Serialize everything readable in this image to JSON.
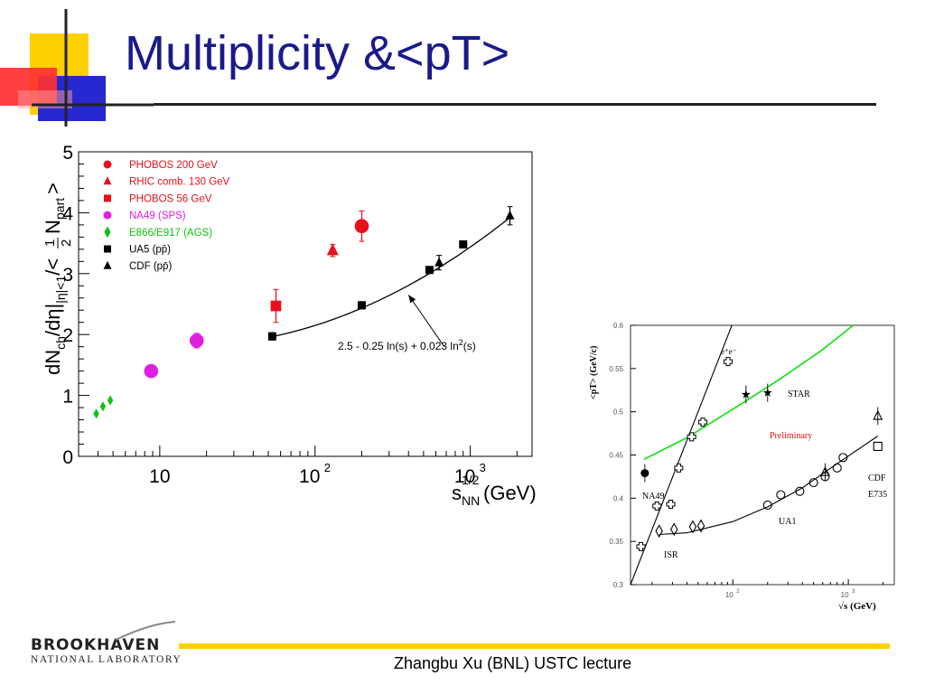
{
  "slide": {
    "title": "Multiplicity &<pT>",
    "footer": "Zhangbu Xu (BNL) USTC lecture",
    "logo_line1": "BROOKHAVEN",
    "logo_line2": "NATIONAL LABORATORY"
  },
  "colors": {
    "title": "#1a1a8c",
    "accent_yellow": "#ffd000",
    "accent_red": "#ff3030",
    "accent_blue": "#2828d0",
    "phobos_red": "#e8101a",
    "na49_magenta": "#e020e0",
    "ags_green": "#10c010",
    "star_curve": "#10e010"
  },
  "chart_data": [
    {
      "type": "scatter",
      "title": "",
      "xlabel": "sNN1/2 (GeV)",
      "xlabel_parts": {
        "s": "s",
        "sup": "1/2",
        "sub": "NN",
        "unit": "(GeV)"
      },
      "ylabel": "dNch/dη||η|<1/<½ Npart>",
      "x_scale": "log",
      "xlim": [
        3,
        2500
      ],
      "ylim": [
        0,
        5
      ],
      "x_ticks": [
        {
          "v": 10,
          "b": "10",
          "e": ""
        },
        {
          "v": 100,
          "b": "10",
          "e": "2"
        },
        {
          "v": 1000,
          "b": "10",
          "e": "3"
        }
      ],
      "y_ticks": [
        "0",
        "1",
        "2",
        "3",
        "4",
        "5"
      ],
      "legend_position": "top-left",
      "series": [
        {
          "name": "PHOBOS 200 GeV",
          "color": "#e8101a",
          "marker": "circle",
          "points": [
            {
              "x": 200,
              "y": 3.78,
              "err": 0.25
            }
          ]
        },
        {
          "name": "RHIC comb. 130 GeV",
          "color": "#e8101a",
          "marker": "triangle",
          "points": [
            {
              "x": 130,
              "y": 3.38,
              "err": 0.1
            }
          ]
        },
        {
          "name": "PHOBOS 56 GeV",
          "color": "#e8101a",
          "marker": "square",
          "points": [
            {
              "x": 56,
              "y": 2.47,
              "err": 0.27
            }
          ]
        },
        {
          "name": "NA49 (SPS)",
          "color": "#e020e0",
          "marker": "circle",
          "points": [
            {
              "x": 8.8,
              "y": 1.4,
              "err": 0.1
            },
            {
              "x": 17.3,
              "y": 1.9,
              "err": 0.12
            }
          ]
        },
        {
          "name": "E866/E917 (AGS)",
          "color": "#10c010",
          "marker": "diamond",
          "points": [
            {
              "x": 3.9,
              "y": 0.7
            },
            {
              "x": 4.3,
              "y": 0.82
            },
            {
              "x": 4.8,
              "y": 0.92
            }
          ]
        },
        {
          "name": "UA5 (pp̄)",
          "color": "#000000",
          "marker": "square",
          "points": [
            {
              "x": 53,
              "y": 1.97,
              "err": 0.06
            },
            {
              "x": 200,
              "y": 2.48,
              "err": 0.06
            },
            {
              "x": 546,
              "y": 3.06,
              "err": 0.05
            },
            {
              "x": 900,
              "y": 3.48,
              "err": 0.04
            }
          ]
        },
        {
          "name": "CDF (pp̄)",
          "color": "#000000",
          "marker": "triangle",
          "points": [
            {
              "x": 630,
              "y": 3.18,
              "err": 0.12
            },
            {
              "x": 1800,
              "y": 3.95,
              "err": 0.15
            }
          ]
        }
      ],
      "fit_curve": {
        "label": "2.5 - 0.25 ln(s) + 0.023 ln ²(s)",
        "label_main": "2.5 - 0.25 ln(s) + 0.023 ln",
        "label_sup": "2",
        "label_tail": "(s)",
        "a": 2.5,
        "b": -0.25,
        "c": 0.023,
        "x_range": [
          53,
          1800
        ]
      }
    },
    {
      "type": "scatter",
      "title": "",
      "xlabel": "√s (GeV)",
      "ylabel": "<pT> (GeV/c)",
      "x_scale": "log",
      "xlim": [
        13,
        2500
      ],
      "ylim": [
        0.3,
        0.6
      ],
      "x_ticks": [
        {
          "v": 100,
          "b": "10",
          "e": "2"
        },
        {
          "v": 1000,
          "b": "10",
          "e": "3"
        }
      ],
      "y_ticks": [
        "0.3",
        "0.35",
        "0.4",
        "0.45",
        "0.5",
        "0.55",
        "0.6"
      ],
      "annotations": [
        "e⁺e⁻",
        "STAR",
        "Preliminary",
        "NA49",
        "ISR",
        "UA1",
        "CDF",
        "E735"
      ],
      "series": [
        {
          "name": "e⁺e⁻",
          "marker": "cross",
          "points": [
            {
              "x": 16,
              "y": 0.344
            },
            {
              "x": 22,
              "y": 0.391
            },
            {
              "x": 29,
              "y": 0.393
            },
            {
              "x": 34,
              "y": 0.435
            },
            {
              "x": 44,
              "y": 0.471
            },
            {
              "x": 55,
              "y": 0.488
            },
            {
              "x": 91,
              "y": 0.558
            }
          ]
        },
        {
          "name": "STAR",
          "marker": "star",
          "points": [
            {
              "x": 130,
              "y": 0.52
            },
            {
              "x": 200,
              "y": 0.522
            }
          ]
        },
        {
          "name": "NA49",
          "marker": "dot",
          "points": [
            {
              "x": 17.3,
              "y": 0.429
            }
          ]
        },
        {
          "name": "ISR",
          "marker": "diamond",
          "points": [
            {
              "x": 23,
              "y": 0.362
            },
            {
              "x": 31,
              "y": 0.364
            },
            {
              "x": 45,
              "y": 0.367
            },
            {
              "x": 53,
              "y": 0.368
            }
          ]
        },
        {
          "name": "UA1",
          "marker": "circle",
          "points": [
            {
              "x": 200,
              "y": 0.392
            },
            {
              "x": 260,
              "y": 0.404
            },
            {
              "x": 380,
              "y": 0.408
            },
            {
              "x": 500,
              "y": 0.418
            },
            {
              "x": 630,
              "y": 0.425
            },
            {
              "x": 800,
              "y": 0.435
            },
            {
              "x": 900,
              "y": 0.447
            }
          ]
        },
        {
          "name": "CDF",
          "marker": "triangle",
          "points": [
            {
              "x": 630,
              "y": 0.43
            },
            {
              "x": 1800,
              "y": 0.495
            }
          ]
        },
        {
          "name": "E735",
          "marker": "square",
          "points": [
            {
              "x": 1800,
              "y": 0.46
            }
          ]
        }
      ],
      "lines": [
        {
          "name": "e⁺e⁻",
          "points": [
            {
              "x": 13,
              "y": 0.3
            },
            {
              "x": 98,
              "y": 0.6
            }
          ]
        },
        {
          "name": "STAR",
          "points": [
            {
              "x": 17,
              "y": 0.445
            },
            {
              "x": 40,
              "y": 0.47
            },
            {
              "x": 100,
              "y": 0.503
            },
            {
              "x": 250,
              "y": 0.537
            },
            {
              "x": 600,
              "y": 0.572
            },
            {
              "x": 1100,
              "y": 0.6
            }
          ]
        },
        {
          "name": "UA1",
          "points": [
            {
              "x": 23,
              "y": 0.358
            },
            {
              "x": 40,
              "y": 0.36
            },
            {
              "x": 100,
              "y": 0.373
            },
            {
              "x": 200,
              "y": 0.39
            },
            {
              "x": 400,
              "y": 0.412
            },
            {
              "x": 800,
              "y": 0.44
            },
            {
              "x": 1800,
              "y": 0.472
            }
          ]
        }
      ]
    }
  ]
}
